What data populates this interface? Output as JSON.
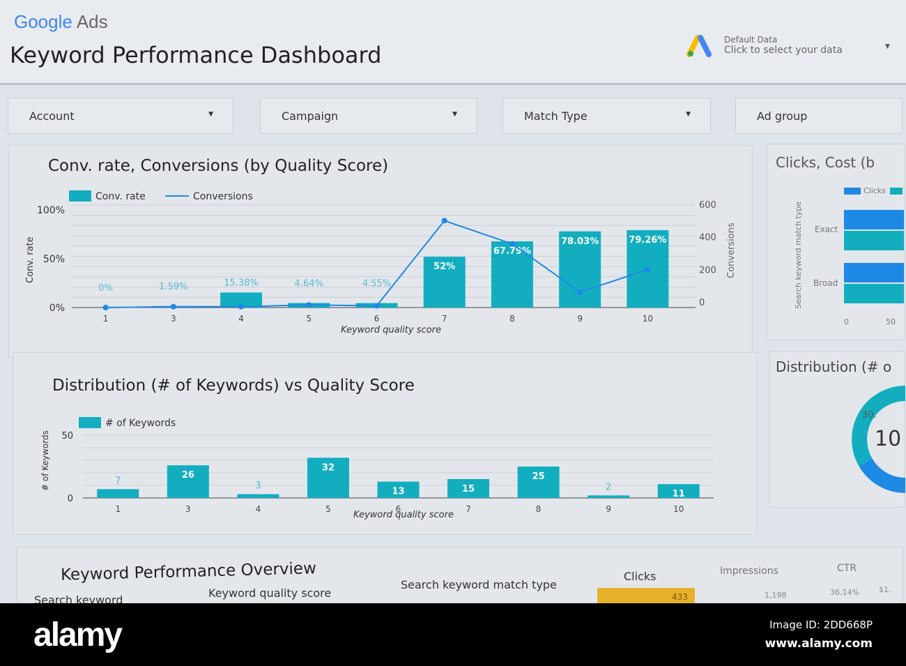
{
  "header": {
    "logo_google": "Google",
    "logo_ads": "Ads",
    "title": "Keyword Performance Dashboard",
    "data_source": {
      "line1": "Default Data",
      "line2": "Click to select your data"
    }
  },
  "filters": [
    {
      "label": "Account"
    },
    {
      "label": "Campaign"
    },
    {
      "label": "Match Type"
    },
    {
      "label": "Ad group"
    }
  ],
  "chart_data": [
    {
      "type": "bar+line",
      "title": "Conv. rate, Conversions (by Quality Score)",
      "xlabel": "Keyword quality score",
      "ylabel": "Conv. rate",
      "y2label": "Conversions",
      "categories": [
        "1",
        "3",
        "4",
        "5",
        "6",
        "7",
        "8",
        "9",
        "10"
      ],
      "series": [
        {
          "name": "Conv. rate",
          "type": "bar",
          "values": [
            0,
            1.59,
            15.38,
            4.64,
            4.55,
            52,
            67.79,
            78.03,
            79.26
          ],
          "labels": [
            "0%",
            "1.59%",
            "15.38%",
            "4.64%",
            "4.55%",
            "52%",
            "67.79%",
            "78.03%",
            "79.26%"
          ]
        },
        {
          "name": "Conversions",
          "type": "line",
          "values": [
            0,
            5,
            5,
            15,
            10,
            505,
            370,
            90,
            220
          ]
        }
      ],
      "ylim": [
        0,
        100
      ],
      "yticks": [
        "0%",
        "50%",
        "100%"
      ],
      "y2lim": [
        0,
        600
      ],
      "y2ticks": [
        "0",
        "200",
        "400",
        "600"
      ],
      "legend": "top-left",
      "colors": {
        "bar": "#12aec0",
        "line": "#1e88e5"
      }
    },
    {
      "type": "bar",
      "title": "Distribution (# of Keywords) vs Quality Score",
      "xlabel": "Keyword quality score",
      "ylabel": "# of Keywords",
      "categories": [
        "1",
        "3",
        "4",
        "5",
        "6",
        "7",
        "8",
        "9",
        "10"
      ],
      "series": [
        {
          "name": "# of Keywords",
          "values": [
            7,
            26,
            3,
            32,
            13,
            15,
            25,
            2,
            11
          ]
        }
      ],
      "ylim": [
        0,
        50
      ],
      "yticks": [
        "0",
        "50"
      ],
      "legend": "top-left",
      "colors": {
        "bar": "#12aec0"
      }
    },
    {
      "type": "bar-horizontal",
      "title": "Clicks, Cost (b",
      "ylabel": "Search keyword match type",
      "categories": [
        "Exact",
        "Broad"
      ],
      "series": [
        {
          "name": "Clicks"
        }
      ],
      "xticks": [
        "0",
        "50"
      ],
      "colors": {
        "clicks": "#1e88e5",
        "cost": "#12aec0"
      }
    },
    {
      "type": "pie",
      "title": "Distribution (# o",
      "center_label": "10",
      "slice_label": "30.",
      "colors": [
        "#12aec0",
        "#1e88e5"
      ]
    }
  ],
  "table": {
    "title": "Keyword Performance Overview",
    "columns": [
      "Search keyword",
      "Keyword quality score",
      "Search keyword match type",
      "Clicks",
      "Impressions",
      "CTR",
      "$1."
    ],
    "row1": {
      "clicks": "433",
      "impressions": "1,198",
      "ctr": "36.14%"
    }
  },
  "watermark": {
    "brand": "alamy",
    "image_id": "Image ID: 2DD668P",
    "url": "www.alamy.com"
  }
}
